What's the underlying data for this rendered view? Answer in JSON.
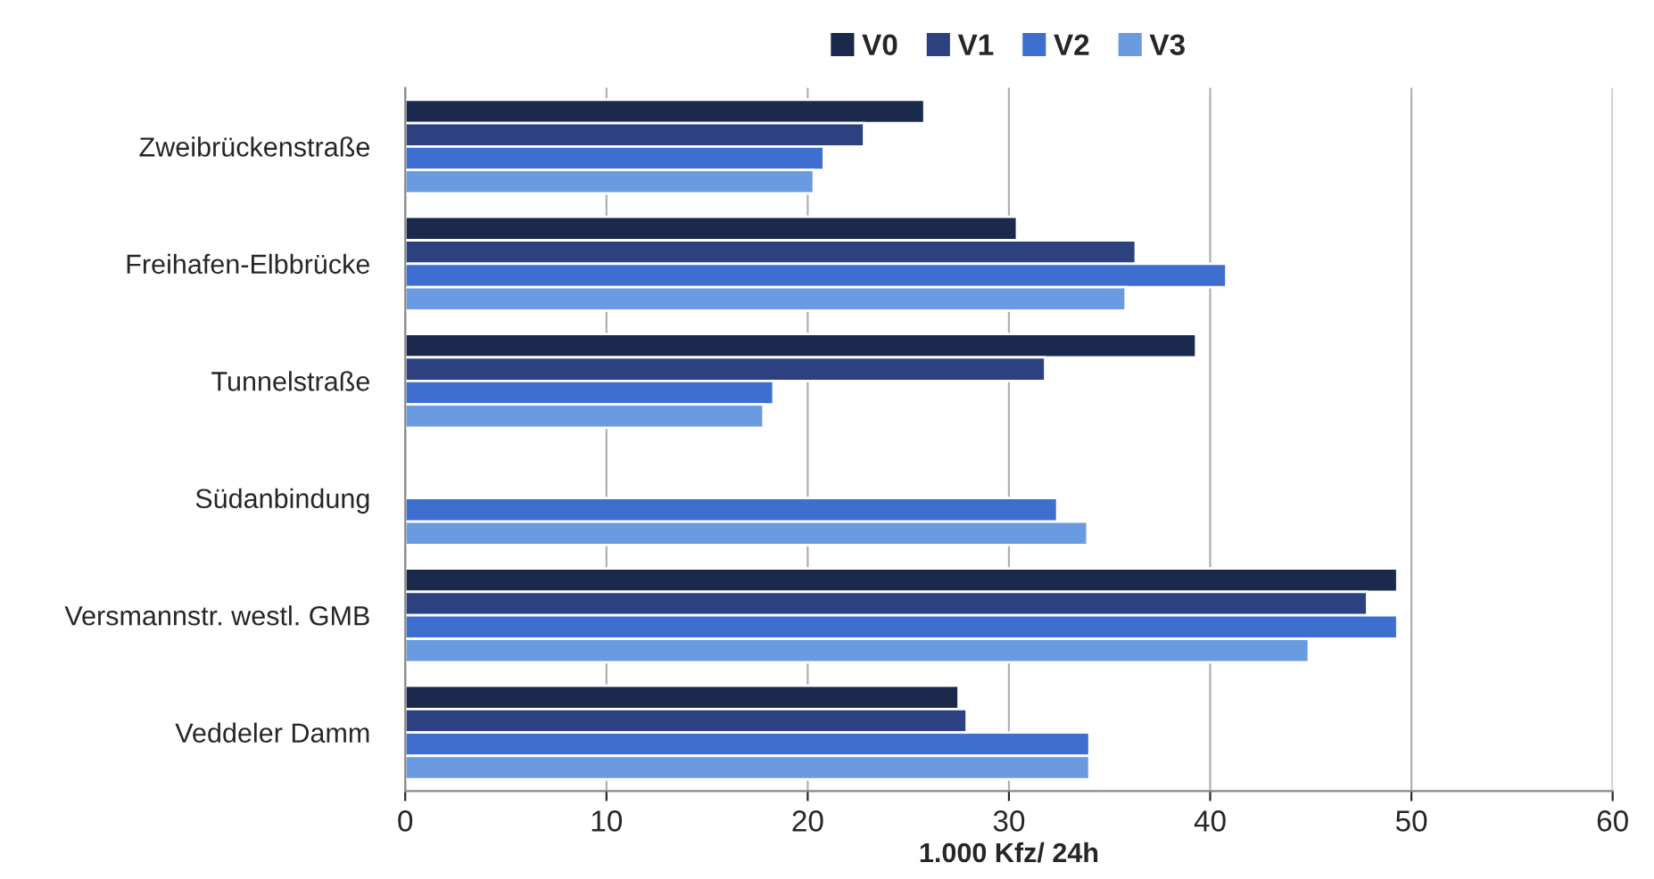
{
  "chart_data": {
    "type": "bar",
    "orientation": "horizontal",
    "xlabel": "1.000 Kfz/ 24h",
    "categories": [
      "Zweibrückenstraße",
      "Freihafen-Elbbrücke",
      "Tunnelstraße",
      "Südanbindung",
      "Versmannstr. westl. GMB",
      "Veddeler Damm"
    ],
    "series": [
      {
        "name": "V0",
        "color": "#1b2a4c",
        "values": [
          25.8,
          30.4,
          39.3,
          null,
          49.3,
          27.5
        ]
      },
      {
        "name": "V1",
        "color": "#2d4180",
        "values": [
          22.8,
          36.3,
          31.8,
          null,
          47.8,
          27.9
        ]
      },
      {
        "name": "V2",
        "color": "#3e6fcf",
        "values": [
          20.8,
          40.8,
          18.3,
          32.4,
          49.3,
          34.0
        ]
      },
      {
        "name": "V3",
        "color": "#6a9ae0",
        "values": [
          20.3,
          35.8,
          17.8,
          33.9,
          44.9,
          34.0
        ]
      }
    ],
    "xlim": [
      0,
      60
    ],
    "xticks": [
      0,
      10,
      20,
      30,
      40,
      50,
      60
    ],
    "grid": "x",
    "legend": "top"
  }
}
